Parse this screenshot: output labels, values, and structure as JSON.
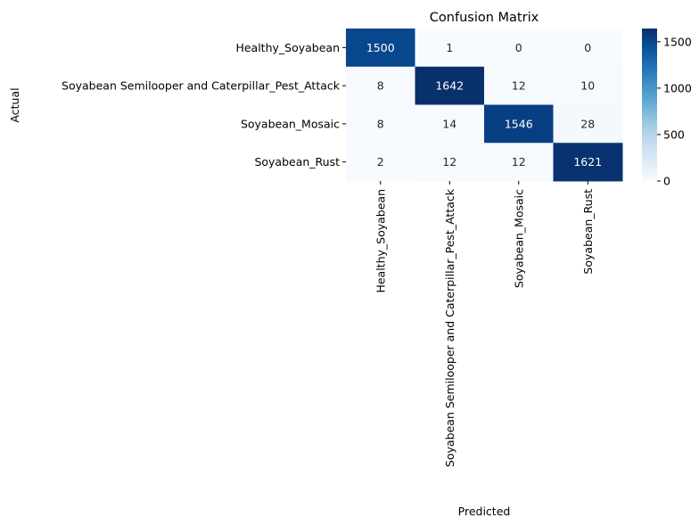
{
  "chart_data": {
    "type": "heatmap",
    "title": "Confusion Matrix",
    "xlabel": "Predicted",
    "ylabel": "Actual",
    "row_labels": [
      "Healthy_Soyabean",
      "Soyabean Semilooper and Caterpillar_Pest_Attack",
      "Soyabean_Mosaic",
      "Soyabean_Rust"
    ],
    "col_labels": [
      "Healthy_Soyabean",
      "Soyabean Semilooper and Caterpillar_Pest_Attack",
      "Soyabean_Mosaic",
      "Soyabean_Rust"
    ],
    "values": [
      [
        1500,
        1,
        0,
        0
      ],
      [
        8,
        1642,
        12,
        10
      ],
      [
        8,
        14,
        1546,
        28
      ],
      [
        2,
        12,
        12,
        1621
      ]
    ],
    "colormap": "Blues",
    "colorbar": {
      "min": 0,
      "max": 1642,
      "ticks": [
        0,
        500,
        1000,
        1500
      ]
    },
    "annotations": true,
    "grid": false
  }
}
